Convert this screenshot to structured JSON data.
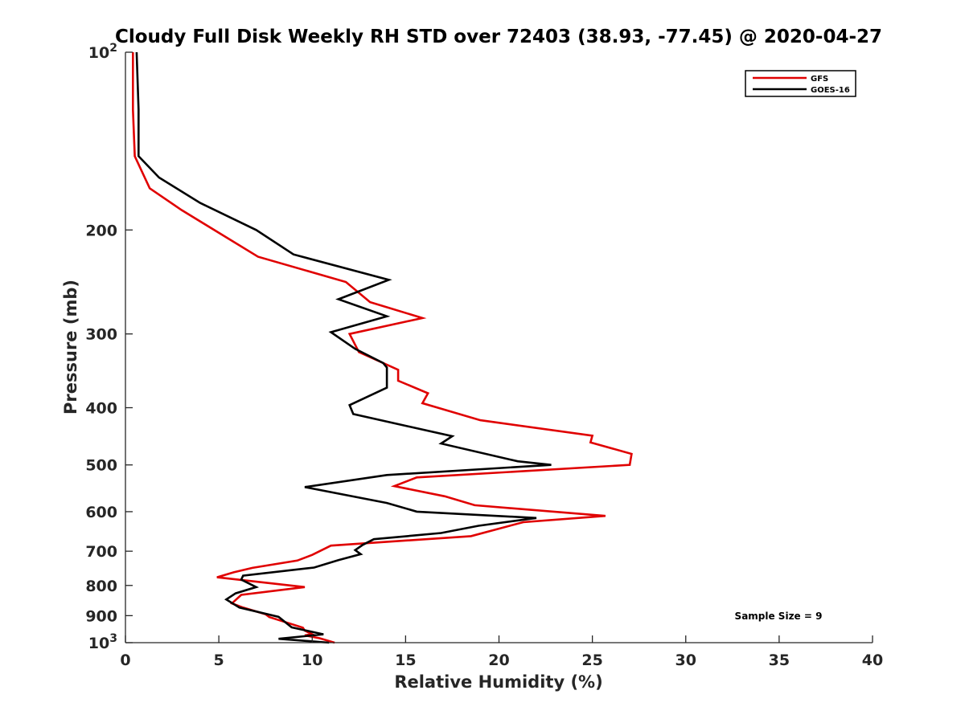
{
  "chart_data": {
    "type": "line",
    "title": "Cloudy Full Disk Weekly RH STD over 72403 (38.93, -77.45) @ 2020-04-27",
    "xlabel": "Relative Humidity (%)",
    "ylabel": "Pressure (mb)",
    "xlim": [
      0,
      40
    ],
    "ylim": [
      100,
      1000
    ],
    "y_scale": "log",
    "y_reversed": true,
    "x_ticks": [
      "0",
      "5",
      "10",
      "15",
      "20",
      "25",
      "30",
      "35",
      "40"
    ],
    "x_tick_values": [
      0,
      5,
      10,
      15,
      20,
      25,
      30,
      35,
      40
    ],
    "y_ticks": [
      {
        "value": 100,
        "base": "10",
        "exp": "2"
      },
      {
        "value": 200,
        "label": "200"
      },
      {
        "value": 300,
        "label": "300"
      },
      {
        "value": 400,
        "label": "400"
      },
      {
        "value": 500,
        "label": "500"
      },
      {
        "value": 600,
        "label": "600"
      },
      {
        "value": 700,
        "label": "700"
      },
      {
        "value": 800,
        "label": "800"
      },
      {
        "value": 900,
        "label": "900"
      },
      {
        "value": 1000,
        "base": "10",
        "exp": "3"
      }
    ],
    "grid": false,
    "legend_position": "top-right",
    "annotation": "Sample Size = 9",
    "series": [
      {
        "name": "GFS",
        "color": "#e00000",
        "points": [
          [
            0.4,
            100
          ],
          [
            0.4,
            125
          ],
          [
            0.5,
            150
          ],
          [
            1.3,
            170
          ],
          [
            3.0,
            185
          ],
          [
            7.1,
            222
          ],
          [
            11.8,
            245
          ],
          [
            13.1,
            265
          ],
          [
            15.9,
            282
          ],
          [
            12.0,
            300
          ],
          [
            12.5,
            322
          ],
          [
            14.6,
            345
          ],
          [
            14.6,
            360
          ],
          [
            16.2,
            378
          ],
          [
            15.9,
            393
          ],
          [
            19.0,
            420
          ],
          [
            25.0,
            446
          ],
          [
            24.9,
            458
          ],
          [
            27.1,
            479
          ],
          [
            27.0,
            500
          ],
          [
            15.6,
            525
          ],
          [
            14.4,
            543
          ],
          [
            17.1,
            565
          ],
          [
            18.7,
            585
          ],
          [
            25.7,
            610
          ],
          [
            21.3,
            625
          ],
          [
            18.5,
            660
          ],
          [
            11.0,
            685
          ],
          [
            10.0,
            710
          ],
          [
            9.2,
            726
          ],
          [
            6.8,
            747
          ],
          [
            5.8,
            760
          ],
          [
            4.9,
            775
          ],
          [
            9.6,
            805
          ],
          [
            6.2,
            830
          ],
          [
            5.7,
            858
          ],
          [
            6.3,
            872
          ],
          [
            7.5,
            895
          ],
          [
            7.7,
            905
          ],
          [
            9.5,
            943
          ],
          [
            9.6,
            954
          ],
          [
            10.0,
            968
          ],
          [
            9.6,
            972
          ],
          [
            10.4,
            983
          ],
          [
            11.2,
            1000
          ]
        ]
      },
      {
        "name": "GOES-16",
        "color": "#000000",
        "points": [
          [
            0.6,
            100
          ],
          [
            0.7,
            125
          ],
          [
            0.7,
            150
          ],
          [
            1.8,
            163
          ],
          [
            4.0,
            180
          ],
          [
            7.0,
            200
          ],
          [
            9.0,
            220
          ],
          [
            14.1,
            243
          ],
          [
            11.4,
            262
          ],
          [
            14.0,
            280
          ],
          [
            11.0,
            298
          ],
          [
            12.3,
            318
          ],
          [
            13.8,
            336
          ],
          [
            14.0,
            342
          ],
          [
            14.0,
            370
          ],
          [
            12.0,
            396
          ],
          [
            12.2,
            410
          ],
          [
            17.5,
            447
          ],
          [
            16.9,
            460
          ],
          [
            21.0,
            493
          ],
          [
            22.8,
            500
          ],
          [
            14.0,
            520
          ],
          [
            9.6,
            545
          ],
          [
            14.0,
            580
          ],
          [
            15.6,
            600
          ],
          [
            22.0,
            615
          ],
          [
            18.9,
            634
          ],
          [
            16.9,
            652
          ],
          [
            13.3,
            668
          ],
          [
            12.7,
            683
          ],
          [
            12.3,
            697
          ],
          [
            12.6,
            708
          ],
          [
            11.4,
            725
          ],
          [
            10.1,
            746
          ],
          [
            6.3,
            770
          ],
          [
            6.2,
            782
          ],
          [
            7.0,
            805
          ],
          [
            5.9,
            825
          ],
          [
            5.4,
            845
          ],
          [
            6.1,
            872
          ],
          [
            8.2,
            904
          ],
          [
            8.9,
            942
          ],
          [
            10.6,
            968
          ],
          [
            8.2,
            985
          ],
          [
            10.9,
            1000
          ]
        ]
      }
    ]
  }
}
